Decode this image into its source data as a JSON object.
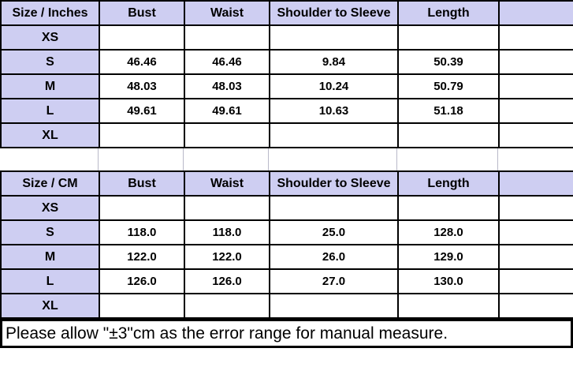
{
  "colors": {
    "header_fill": "#cecef2",
    "table_border": "#000000",
    "gap_line": "#b9b9c9",
    "text": "#000000",
    "background": "#ffffff"
  },
  "tables": [
    {
      "id": "inches",
      "headers": [
        "Size / Inches",
        "Bust",
        "Waist",
        "Shoulder to Sleeve",
        "Length",
        ""
      ],
      "rows": [
        [
          "XS",
          "",
          "",
          "",
          "",
          ""
        ],
        [
          "S",
          "46.46",
          "46.46",
          "9.84",
          "50.39",
          ""
        ],
        [
          "M",
          "48.03",
          "48.03",
          "10.24",
          "50.79",
          ""
        ],
        [
          "L",
          "49.61",
          "49.61",
          "10.63",
          "51.18",
          ""
        ],
        [
          "XL",
          "",
          "",
          "",
          "",
          ""
        ]
      ]
    },
    {
      "id": "cm",
      "headers": [
        "Size / CM",
        "Bust",
        "Waist",
        "Shoulder to Sleeve",
        "Length",
        ""
      ],
      "rows": [
        [
          "XS",
          "",
          "",
          "",
          "",
          ""
        ],
        [
          "S",
          "118.0",
          "118.0",
          "25.0",
          "128.0",
          ""
        ],
        [
          "M",
          "122.0",
          "122.0",
          "26.0",
          "129.0",
          ""
        ],
        [
          "L",
          "126.0",
          "126.0",
          "27.0",
          "130.0",
          ""
        ],
        [
          "XL",
          "",
          "",
          "",
          "",
          ""
        ]
      ]
    }
  ],
  "note": "Please allow \"±3\"cm as the error range for manual measure."
}
